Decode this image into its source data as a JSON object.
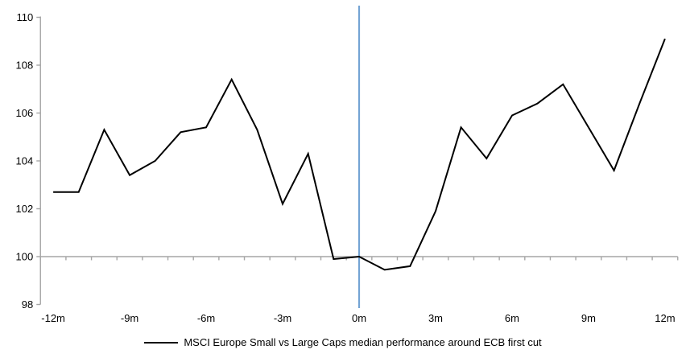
{
  "chart_data": {
    "type": "line",
    "title": "",
    "xlabel": "",
    "ylabel": "",
    "x": [
      -12,
      -11,
      -10,
      -9,
      -8,
      -7,
      -6,
      -5,
      -4,
      -3,
      -2,
      -1,
      0,
      1,
      2,
      3,
      4,
      5,
      6,
      7,
      8,
      9,
      10,
      11,
      12
    ],
    "series": [
      {
        "name": "MSCI Europe Small vs Large Caps median performance around ECB first cut",
        "color": "#000000",
        "values": [
          102.7,
          102.7,
          105.3,
          103.4,
          104.0,
          105.2,
          105.4,
          107.4,
          105.3,
          102.2,
          104.3,
          99.9,
          100.0,
          99.45,
          99.6,
          101.9,
          105.4,
          104.1,
          105.9,
          106.4,
          107.2,
          105.4,
          103.6,
          106.4,
          109.1
        ]
      }
    ],
    "x_tick_positions": [
      -12,
      -9,
      -6,
      -3,
      0,
      3,
      6,
      9,
      12
    ],
    "x_tick_labels": [
      "-12m",
      "-9m",
      "-6m",
      "-3m",
      "0m",
      "3m",
      "6m",
      "9m",
      "12m"
    ],
    "y_ticks": [
      98,
      100,
      102,
      104,
      106,
      108,
      110
    ],
    "ylim": [
      98,
      110
    ],
    "xlim": [
      -12,
      12
    ],
    "baseline_value": 100,
    "event_line": {
      "x": 0,
      "color": "#74A4D4"
    },
    "axis_color": "#A6A6A6",
    "grid": "baseline-only",
    "legend": {
      "position": "bottom-center",
      "label": "MSCI Europe Small vs Large Caps median performance around ECB first cut"
    }
  }
}
